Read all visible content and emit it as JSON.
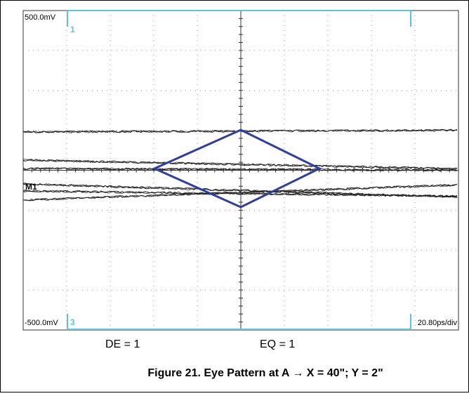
{
  "scope": {
    "top_label": "500.0mV",
    "top_channel": "1",
    "bottom_label": "-500.0mV",
    "bottom_channel": "3",
    "timebase": "20.80ps/div",
    "marker": "M1"
  },
  "settings": {
    "de": "DE = 1",
    "eq": "EQ = 1"
  },
  "caption": "Figure 21. Eye Pattern at A → X = 40\"; Y = 2\""
}
